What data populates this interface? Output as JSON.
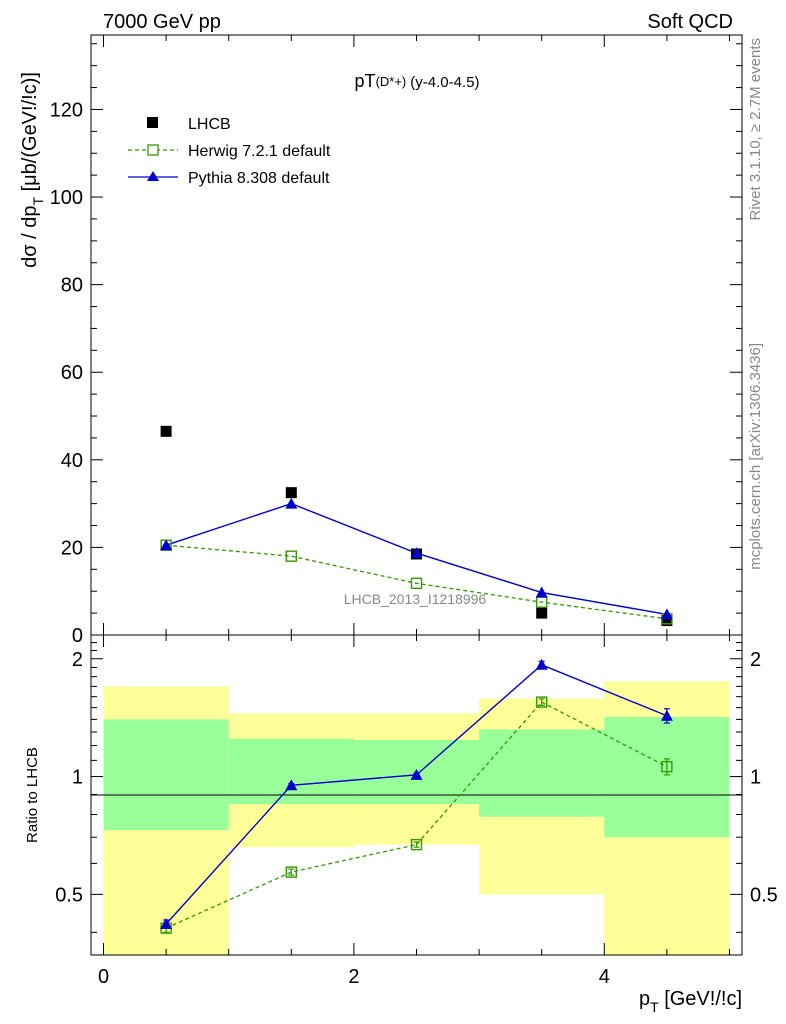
{
  "header": {
    "left": "7000 GeV pp",
    "right": "Soft QCD"
  },
  "side_text": {
    "rivet": "Rivet 3.1.10, ≥ 2.7M events",
    "mcplots": "mcplots.cern.ch [arXiv:1306.3436]"
  },
  "watermark": "LHCB_2013_I1218996",
  "colors": {
    "lhcb": "#000000",
    "herwig": "#339900",
    "pythia": "#0000cc",
    "band_outer": "#ffff99",
    "band_inner": "#99ff99"
  },
  "chart_data": [
    {
      "type": "line",
      "panel": "main",
      "title_main": "pT",
      "title_sub": "(D*+)",
      "title_rest": "(y-4.0-4.5)",
      "xlabel": "",
      "ylabel": "dσ / dp_T [μb/(GeV!/!c)]",
      "ylabel_parts": {
        "a": "dσ / dp",
        "sub": "T",
        "b": " [μb/(GeV!/!c)]"
      },
      "xlim": [
        -0.1,
        5.1
      ],
      "ylim": [
        0,
        137
      ],
      "yticks": [
        0,
        20,
        40,
        60,
        80,
        100,
        120
      ],
      "ytick_labels": [
        "0",
        "20",
        "40",
        "60",
        "80",
        "100",
        "120"
      ],
      "legend_position": "top-left",
      "series": [
        {
          "name": "LHCB",
          "style": "markers",
          "x": [
            0.5,
            1.5,
            2.5,
            3.5,
            4.5
          ],
          "y": [
            46.5,
            32.5,
            18.5,
            5.0,
            3.3
          ]
        },
        {
          "name": "Herwig 7.2.1 default",
          "style": "dashed-open-square",
          "x": [
            0.5,
            1.5,
            2.5,
            3.5,
            4.5
          ],
          "y": [
            20.5,
            18.0,
            11.8,
            7.5,
            3.7
          ]
        },
        {
          "name": "Pythia 8.308 default",
          "style": "solid-triangle",
          "x": [
            0.5,
            1.5,
            2.5,
            3.5,
            4.5
          ],
          "y": [
            20.5,
            30.0,
            18.7,
            9.7,
            4.7
          ]
        }
      ]
    },
    {
      "type": "line",
      "panel": "ratio",
      "ylabel": "Ratio to LHCB",
      "xlabel_parts": {
        "a": "p",
        "sub": "T",
        "b": " [GeV!/!c]"
      },
      "xlim": [
        -0.1,
        5.1
      ],
      "ylim": [
        0.35,
        2.3
      ],
      "xticks": [
        0,
        2,
        4
      ],
      "xtick_labels": [
        "0",
        "2",
        "4"
      ],
      "yticks": [
        0.5,
        1,
        2
      ],
      "ytick_labels": [
        "0.5",
        "1",
        "2"
      ],
      "bins": [
        [
          0,
          1
        ],
        [
          1,
          2
        ],
        [
          2,
          3
        ],
        [
          3,
          4
        ],
        [
          4,
          5
        ]
      ],
      "band_outer": [
        [
          0.35,
          1.7
        ],
        [
          0.66,
          1.45
        ],
        [
          0.67,
          1.45
        ],
        [
          0.5,
          1.58
        ],
        [
          0.35,
          1.75
        ]
      ],
      "band_inner": [
        [
          0.73,
          1.4
        ],
        [
          0.85,
          1.25
        ],
        [
          0.85,
          1.24
        ],
        [
          0.79,
          1.32
        ],
        [
          0.7,
          1.42
        ]
      ],
      "series": [
        {
          "name": "Herwig 7.2.1 default",
          "x": [
            0.5,
            1.5,
            2.5,
            3.5,
            4.5
          ],
          "y": [
            0.41,
            0.57,
            0.67,
            1.55,
            1.06
          ],
          "err": [
            0.01,
            0.01,
            0.01,
            0.03,
            0.05
          ]
        },
        {
          "name": "Pythia 8.308 default",
          "x": [
            0.5,
            1.5,
            2.5,
            3.5,
            4.5
          ],
          "y": [
            0.42,
            0.95,
            1.01,
            1.93,
            1.43
          ],
          "err": [
            0.01,
            0.01,
            0.01,
            0.04,
            0.06
          ]
        }
      ]
    }
  ]
}
